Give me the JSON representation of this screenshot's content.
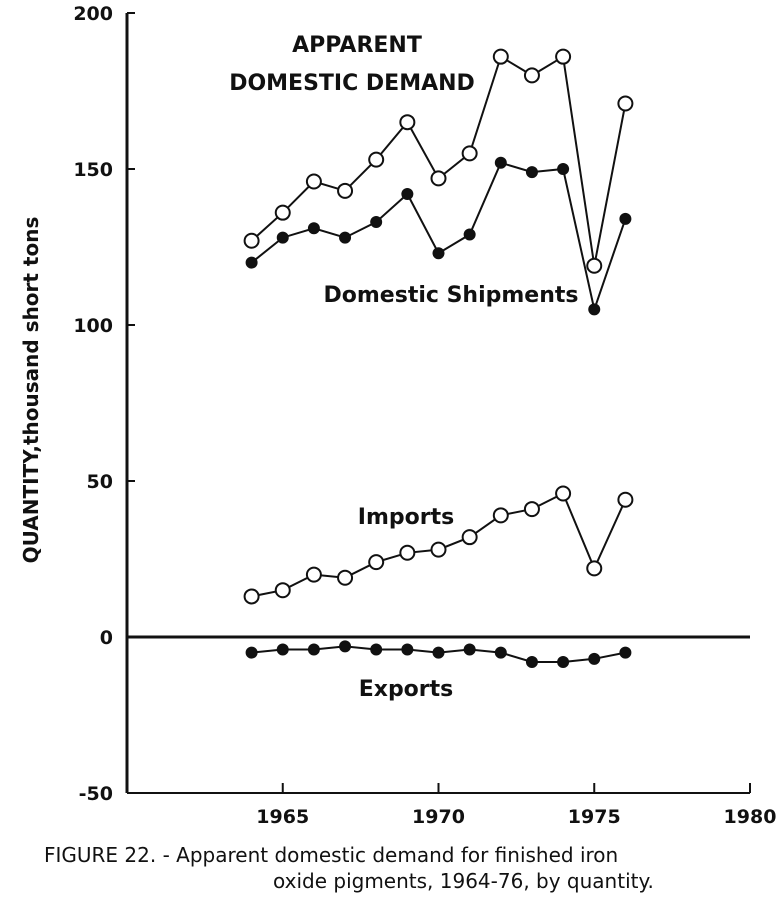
{
  "chart_data": {
    "type": "line",
    "x": [
      1964,
      1965,
      1966,
      1967,
      1968,
      1969,
      1970,
      1971,
      1972,
      1973,
      1974,
      1975,
      1976
    ],
    "series": [
      {
        "name": "APPARENT DOMESTIC DEMAND",
        "marker": "open",
        "values": [
          127,
          136,
          146,
          143,
          153,
          165,
          147,
          155,
          186,
          180,
          186,
          119,
          171
        ]
      },
      {
        "name": "Domestic Shipments",
        "marker": "filled",
        "values": [
          120,
          128,
          131,
          128,
          133,
          142,
          123,
          129,
          152,
          149,
          150,
          105,
          134
        ]
      },
      {
        "name": "Imports",
        "marker": "open",
        "values": [
          13,
          15,
          20,
          19,
          24,
          27,
          28,
          32,
          39,
          41,
          46,
          22,
          44
        ]
      },
      {
        "name": "Exports",
        "marker": "filled",
        "values": [
          -5,
          -4,
          -4,
          -3,
          -4,
          -4,
          -5,
          -4,
          -5,
          -8,
          -8,
          -7,
          -5
        ]
      }
    ],
    "xlim": [
      1960,
      1980
    ],
    "ylim": [
      -50,
      200
    ],
    "xticks": [
      1965,
      1970,
      1975,
      1980
    ],
    "yticks": [
      200,
      150,
      100,
      50,
      0,
      -50
    ],
    "ylabel": "QUANTITY,thousand short tons",
    "labels": {
      "demand_line1": "APPARENT",
      "demand_line2": "DOMESTIC DEMAND",
      "shipments": "Domestic Shipments",
      "imports": "Imports",
      "exports": "Exports"
    },
    "grid": false,
    "colors": {
      "ink": "#111111",
      "background": "#ffffff"
    }
  },
  "caption": {
    "line1": "FIGURE 22. - Apparent domestic demand for finished iron",
    "line2": "oxide pigments, 1964-76, by quantity."
  }
}
